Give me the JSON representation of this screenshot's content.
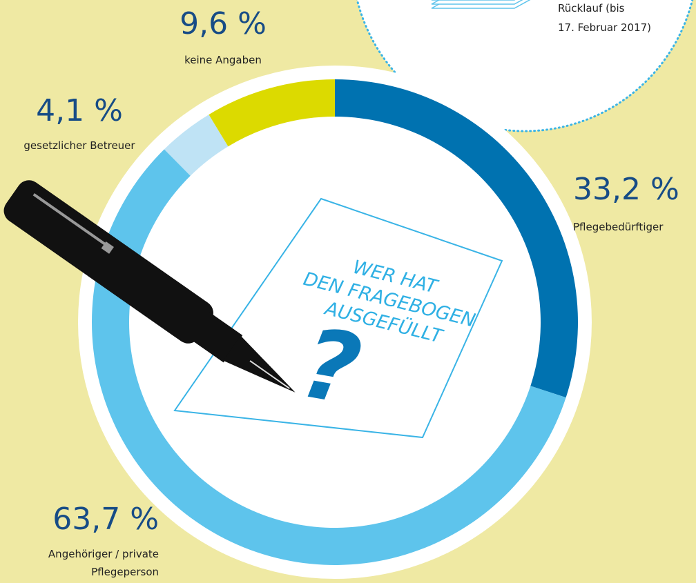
{
  "chart_data": {
    "type": "donut",
    "categories": [
      "Pflegebedürftiger",
      "Angehöriger / private Pflegeperson",
      "gesetzlicher Betreuer",
      "keine Angaben"
    ],
    "values": [
      33.2,
      63.7,
      4.1,
      9.6
    ],
    "value_labels": [
      "33,2 %",
      "63,7 %",
      "4,1 %",
      "9,6 %"
    ],
    "colors": [
      "#0072b0",
      "#5ec4ec",
      "#bfe3f5",
      "#dcda00"
    ],
    "center_text": [
      "WER HAT",
      "DEN FRAGEBOGEN",
      "AUSGEFÜLLT"
    ],
    "center_symbol": "?",
    "note": [
      "Rücklauf (bis",
      "17. Februar 2017)"
    ]
  }
}
